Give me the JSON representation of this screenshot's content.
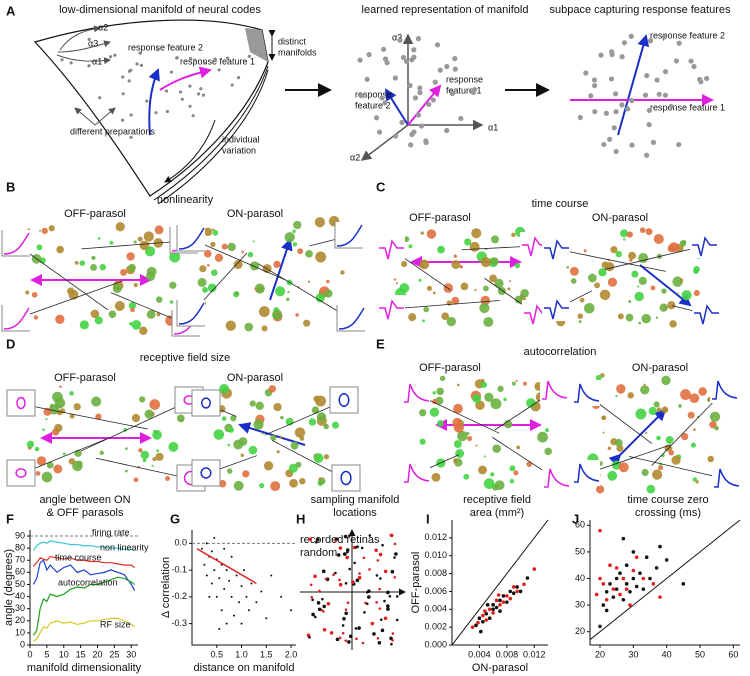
{
  "panel_a": {
    "letter": "A",
    "manifold_title": "low-dimensional manifold of neural codes",
    "rf2": "response feature 2",
    "rf1": "response feature 1",
    "alpha_labels": [
      "α2",
      "α3",
      "α1"
    ],
    "distinct": [
      "distinct",
      "manifolds"
    ],
    "variation": [
      "individual",
      "variation"
    ],
    "preparations": "different preparations",
    "learned_title": "learned representation of manifold",
    "learned_axes": [
      "α3",
      "α2",
      "α1"
    ],
    "learned_rf2": [
      "response",
      "feature 2"
    ],
    "learned_rf1": [
      "response",
      "feature 1"
    ],
    "subspace_title": "subpace capturing response features",
    "sub_rf2": "response feature 2",
    "sub_rf1": "response feature 1"
  },
  "panel_b": {
    "letter": "B",
    "title": "nonlinearity",
    "off": "OFF-parasol",
    "on": "ON-parasol"
  },
  "panel_c": {
    "letter": "C",
    "title": "time course",
    "off": "OFF-parasol",
    "on": "ON-parasol"
  },
  "panel_d": {
    "letter": "D",
    "title": "receptive field size",
    "off": "OFF-parasol",
    "on": "ON-parasol"
  },
  "panel_e": {
    "letter": "E",
    "title": "autocorrelation",
    "off": "OFF-parasol",
    "on": "ON-parasol"
  },
  "panel_h": {
    "letter": "H",
    "title": [
      "sampling manifold",
      "locations"
    ],
    "legend": [
      "recorded retinas",
      "random"
    ]
  },
  "chart_data": [
    {
      "type": "line",
      "letter": "F",
      "title": [
        "angle between ON",
        "& OFF parasols"
      ],
      "xlabel": "manifold dimensionality",
      "ylabel": "angle (degrees)",
      "x": [
        1,
        2,
        3,
        4,
        5,
        6,
        8,
        10,
        12,
        14,
        16,
        18,
        20,
        22,
        24,
        26,
        28,
        30,
        31
      ],
      "series": [
        {
          "name": "firing rate",
          "color": "#3cc8d8",
          "values": [
            78,
            82,
            84,
            85,
            84,
            86,
            85,
            84,
            83,
            83,
            82,
            82,
            81,
            81,
            80,
            80,
            79,
            79,
            78
          ]
        },
        {
          "name": "non linearity",
          "color": "#e03020",
          "values": [
            65,
            68,
            72,
            71,
            70,
            73,
            72,
            71,
            72,
            70,
            70,
            69,
            69,
            68,
            68,
            67,
            66,
            66,
            64
          ]
        },
        {
          "name": "time course",
          "color": "#2040d0",
          "values": [
            50,
            55,
            68,
            70,
            62,
            66,
            60,
            64,
            66,
            60,
            62,
            58,
            59,
            60,
            62,
            60,
            58,
            50,
            45
          ]
        },
        {
          "name": "autocorrelation",
          "color": "#20a020",
          "values": [
            8,
            12,
            30,
            38,
            36,
            42,
            40,
            42,
            46,
            48,
            47,
            50,
            50,
            52,
            54,
            56,
            55,
            52,
            50
          ]
        },
        {
          "name": "RF size",
          "color": "#d8c820",
          "values": [
            3,
            5,
            10,
            15,
            14,
            18,
            20,
            18,
            19,
            17,
            18,
            20,
            20,
            21,
            22,
            22,
            20,
            17,
            15
          ]
        }
      ],
      "hline": 90,
      "xlim": [
        0,
        32
      ],
      "ylim": [
        0,
        95
      ],
      "xticks": [
        0,
        5,
        10,
        15,
        20,
        25,
        30
      ],
      "yticks": [
        0,
        10,
        20,
        30,
        40,
        50,
        60,
        70,
        80,
        90
      ]
    },
    {
      "type": "scatter",
      "letter": "G",
      "xlabel": "distance on manifold",
      "ylabel": "Δ correlation",
      "series": [
        {
          "color": "#111111",
          "x": [
            0.2,
            0.25,
            0.3,
            0.3,
            0.35,
            0.4,
            0.4,
            0.45,
            0.5,
            0.5,
            0.55,
            0.6,
            0.6,
            0.65,
            0.7,
            0.7,
            0.75,
            0.8,
            0.8,
            0.85,
            0.9,
            0.95,
            1.0,
            1.0,
            1.05,
            1.1,
            1.15,
            1.2,
            1.3,
            1.4,
            1.5,
            1.6,
            1.8,
            2.0,
            0.35,
            0.55,
            0.45,
            0.65
          ],
          "values": [
            -0.02,
            -0.08,
            0.0,
            -0.12,
            -0.05,
            -0.15,
            -0.03,
            -0.1,
            -0.2,
            -0.06,
            -0.13,
            -0.25,
            -0.08,
            -0.17,
            -0.1,
            -0.3,
            -0.14,
            -0.2,
            -0.05,
            -0.27,
            -0.12,
            -0.22,
            -0.16,
            -0.3,
            -0.1,
            -0.2,
            -0.25,
            -0.15,
            -0.22,
            -0.18,
            -0.28,
            -0.12,
            -0.2,
            -0.25,
            -0.2,
            -0.32,
            0.02,
            -0.02
          ]
        },
        {
          "color": "#e02020",
          "style": "line",
          "x": [
            0.1,
            1.3
          ],
          "values": [
            -0.02,
            -0.15
          ]
        }
      ],
      "hline": 0,
      "xlim": [
        0,
        2.1
      ],
      "ylim": [
        -0.38,
        0.05
      ],
      "xticks": [
        0.5,
        {
          "value": 1,
          "label": "1.0"
        },
        1.5,
        {
          "value": 2,
          "label": "2.0"
        }
      ],
      "yticks": [
        {
          "value": 0,
          "label": "0.0"
        },
        -0.1,
        -0.2,
        -0.3
      ]
    },
    {
      "type": "scatter",
      "letter": "I",
      "title": [
        "receptive field",
        "area (mm²)"
      ],
      "xlabel": "ON-parasol",
      "ylabel": "OFF-parasol",
      "diagonal": true,
      "series": [
        {
          "color": "#111111",
          "x": [
            0.0035,
            0.004,
            0.0045,
            0.005,
            0.0055,
            0.006,
            0.006,
            0.0065,
            0.007,
            0.007,
            0.0075,
            0.008,
            0.0085,
            0.009,
            0.0095,
            0.01,
            0.011,
            0.0042,
            0.0052
          ],
          "values": [
            0.0022,
            0.003,
            0.0026,
            0.0035,
            0.003,
            0.004,
            0.0045,
            0.0042,
            0.005,
            0.0038,
            0.0055,
            0.0048,
            0.006,
            0.0058,
            0.0065,
            0.006,
            0.0075,
            0.0015,
            0.0045
          ]
        },
        {
          "color": "#e02020",
          "x": [
            0.003,
            0.0038,
            0.0045,
            0.005,
            0.0055,
            0.006,
            0.0065,
            0.007,
            0.0075,
            0.008,
            0.0085,
            0.009,
            0.0095,
            0.0105,
            0.012,
            0.0048,
            0.0068
          ],
          "values": [
            0.002,
            0.0025,
            0.0033,
            0.0028,
            0.004,
            0.0036,
            0.005,
            0.0045,
            0.0048,
            0.0055,
            0.0052,
            0.0065,
            0.006,
            0.0068,
            0.0085,
            0.0038,
            0.0056
          ]
        }
      ],
      "xlim": [
        0,
        0.014
      ],
      "ylim": [
        0,
        0.014
      ],
      "xticks": [
        0.004,
        0.008,
        0.012
      ],
      "yticks": [
        {
          "value": 0,
          "label": "0.000"
        },
        0.002,
        0.004,
        0.006,
        0.008,
        {
          "value": 0.01,
          "label": "0.010"
        },
        0.012
      ]
    },
    {
      "type": "scatter",
      "letter": "J",
      "title": [
        "time course zero",
        "crossing (ms)"
      ],
      "diagonal": true,
      "series": [
        {
          "color": "#111111",
          "x": [
            20,
            21,
            22,
            23,
            24,
            25,
            25,
            26,
            27,
            28,
            28,
            29,
            30,
            30,
            31,
            32,
            33,
            34,
            35,
            37,
            38,
            40,
            45,
            22,
            27
          ],
          "values": [
            22,
            30,
            35,
            38,
            33,
            40,
            36,
            42,
            32,
            45,
            38,
            35,
            40,
            50,
            37,
            42,
            36,
            48,
            40,
            44,
            52,
            47,
            38,
            28,
            55
          ]
        },
        {
          "color": "#e02020",
          "x": [
            19,
            20,
            21,
            22,
            23,
            24,
            25,
            26,
            27,
            28,
            30,
            31,
            33,
            36,
            20,
            29,
            38
          ],
          "values": [
            34,
            40,
            38,
            32,
            45,
            36,
            44,
            34,
            40,
            36,
            43,
            48,
            40,
            38,
            58,
            30,
            33
          ]
        }
      ],
      "xlim": [
        17,
        62
      ],
      "ylim": [
        15,
        62
      ],
      "xticks": [
        20,
        30,
        40,
        50,
        60
      ],
      "yticks": [
        20,
        30,
        40,
        50,
        60
      ]
    }
  ]
}
